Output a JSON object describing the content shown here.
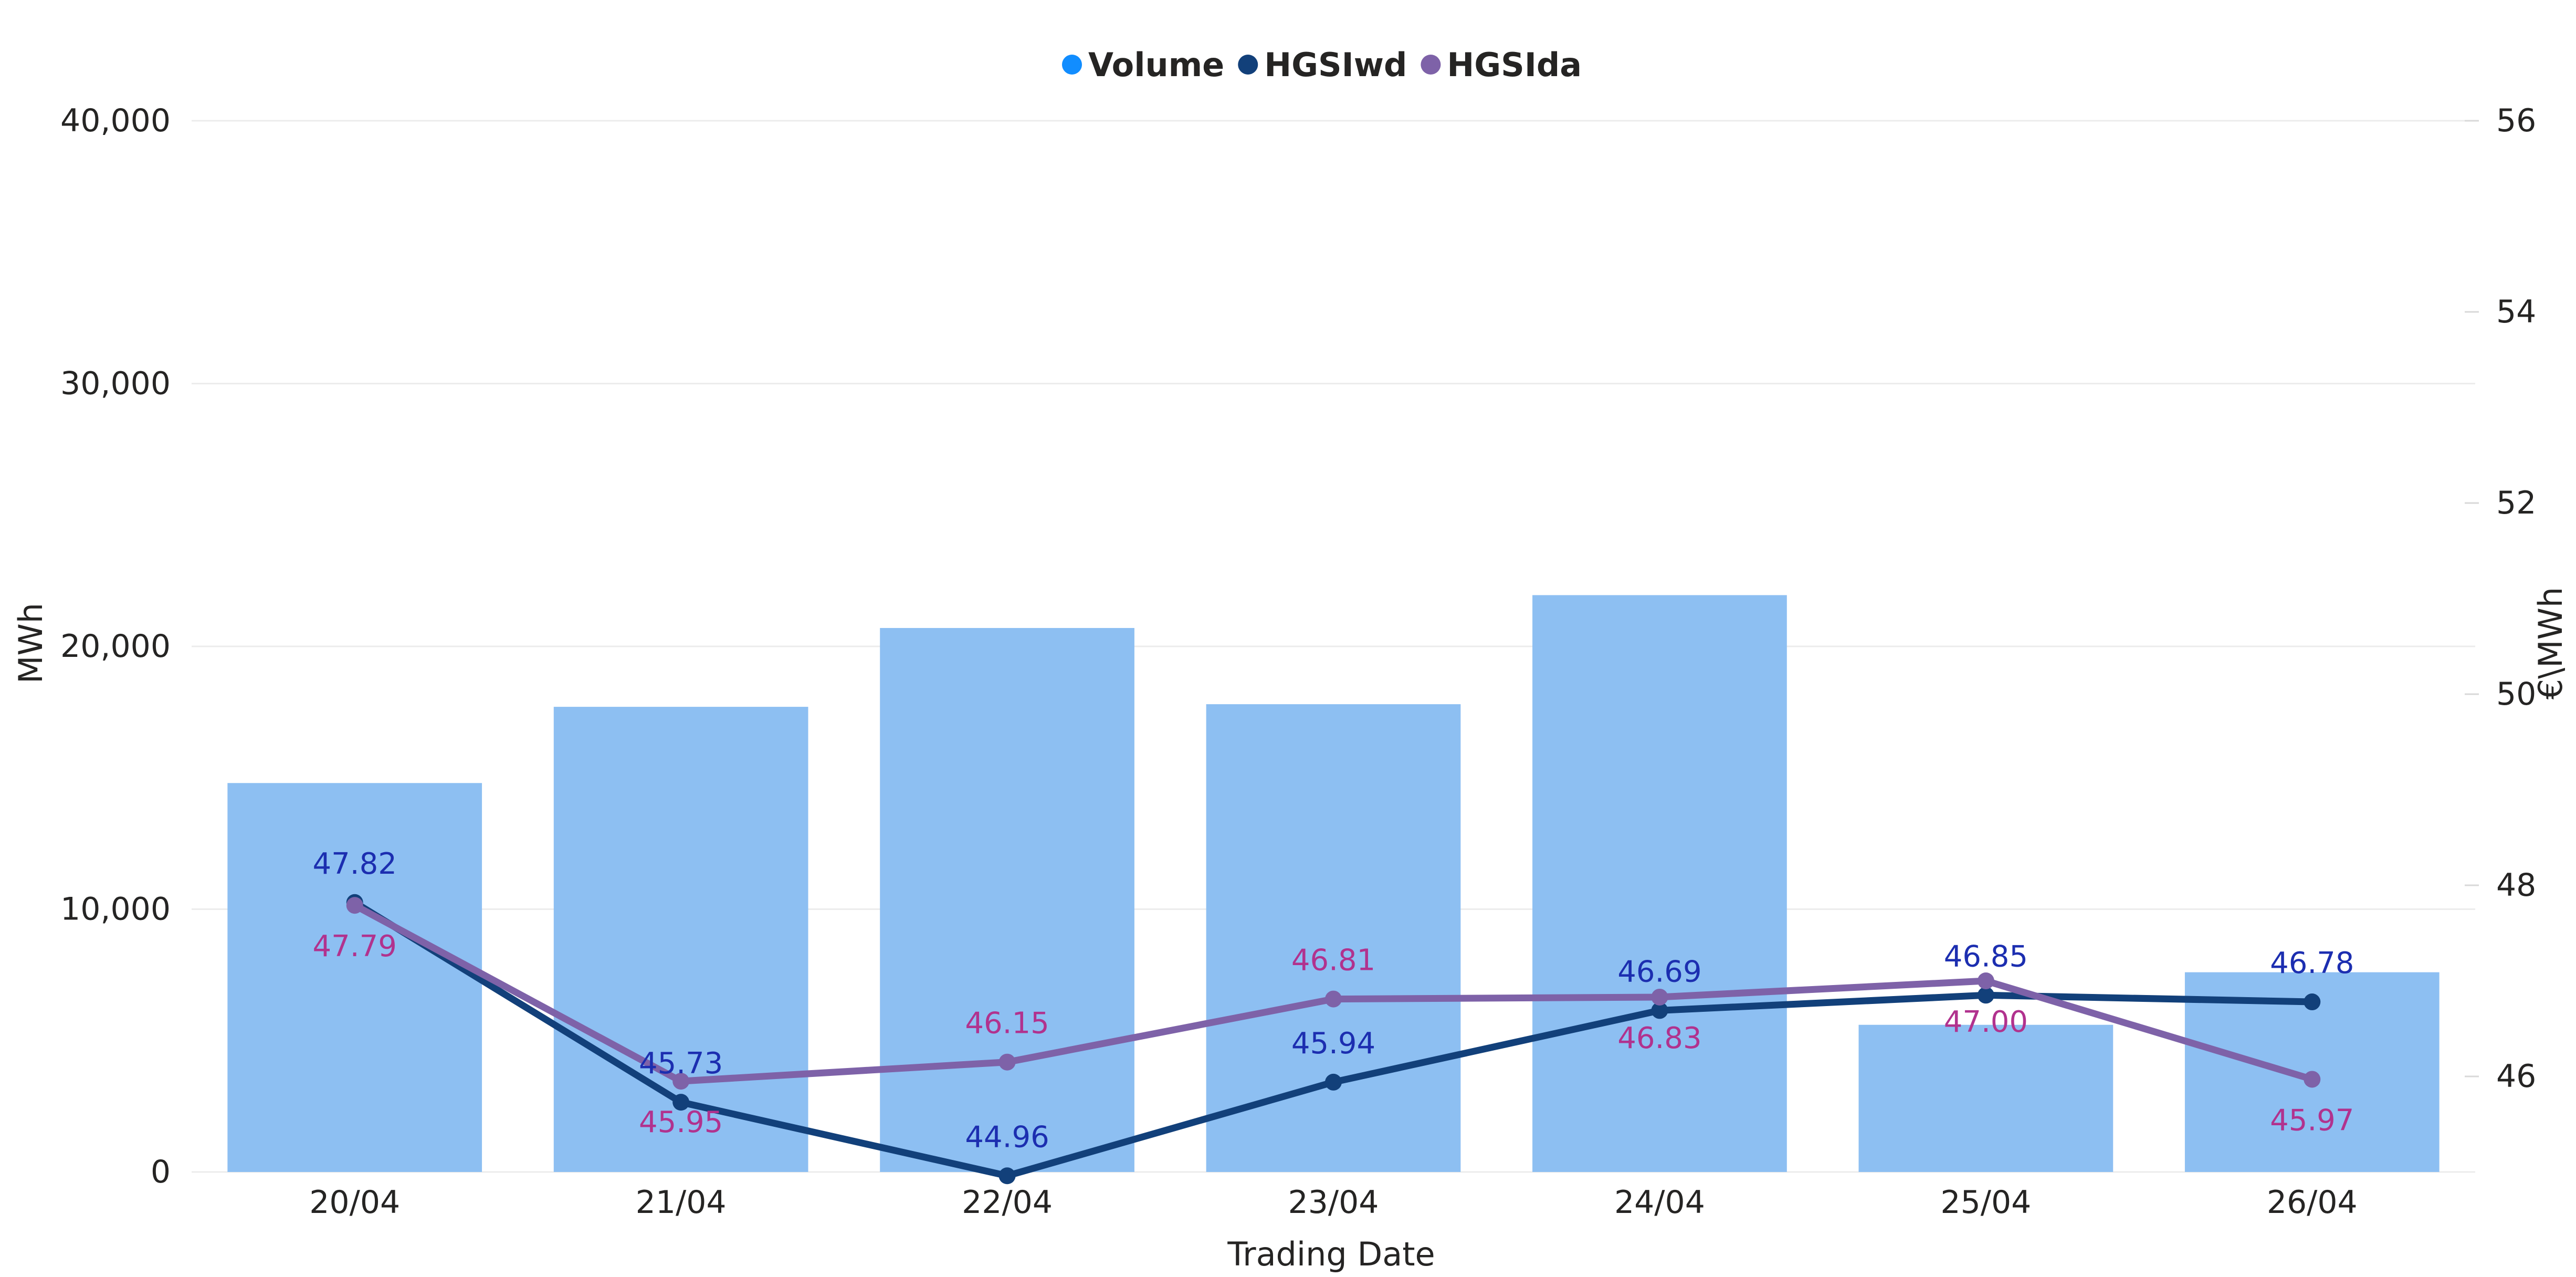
{
  "chart_data": {
    "type": "bar",
    "categories": [
      "20/04",
      "21/04",
      "22/04",
      "23/04",
      "24/04",
      "25/04",
      "26/04"
    ],
    "xlabel": "Trading Date",
    "ylabel_left": "MWh",
    "ylabel_right": "€\\MWh",
    "left_axis": {
      "min": 0,
      "max": 40000,
      "ticks": [
        0,
        10000,
        20000,
        30000,
        40000
      ],
      "tick_labels": [
        "0",
        "10,000",
        "20,000",
        "30,000",
        "40,000"
      ]
    },
    "right_axis": {
      "min": 45,
      "max": 56,
      "ticks": [
        46,
        48,
        50,
        52,
        54,
        56
      ],
      "tick_labels": [
        "46",
        "48",
        "50",
        "52",
        "54",
        "56"
      ]
    },
    "grid": true,
    "legend_position": "top-center",
    "series": [
      {
        "name": "Volume",
        "kind": "bar",
        "axis": "left",
        "color": "#8dbff2",
        "legend_color": "#118dff",
        "values": [
          14800,
          17700,
          20700,
          17800,
          21950,
          5600,
          7600
        ]
      },
      {
        "name": "HGSIwd",
        "kind": "line",
        "axis": "right",
        "color": "#12407a",
        "label_color": "#1c2eb0",
        "values": [
          47.82,
          45.73,
          44.96,
          45.94,
          46.69,
          46.85,
          46.78
        ],
        "labels": [
          "47.82",
          "45.73",
          "44.96",
          "45.94",
          "46.69",
          "46.85",
          "46.78"
        ],
        "label_pos": [
          "above",
          "above",
          "above",
          "above",
          "above",
          "above",
          "above"
        ]
      },
      {
        "name": "HGSIda",
        "kind": "line",
        "axis": "right",
        "color": "#7e62a8",
        "label_color": "#b1328e",
        "values": [
          47.79,
          45.95,
          46.15,
          46.81,
          46.83,
          47.0,
          45.97
        ],
        "labels": [
          "47.79",
          "45.95",
          "46.15",
          "46.81",
          "46.83",
          "47.00",
          "45.97"
        ],
        "label_pos": [
          "below",
          "below",
          "above",
          "above",
          "below",
          "below",
          "below"
        ]
      }
    ]
  }
}
